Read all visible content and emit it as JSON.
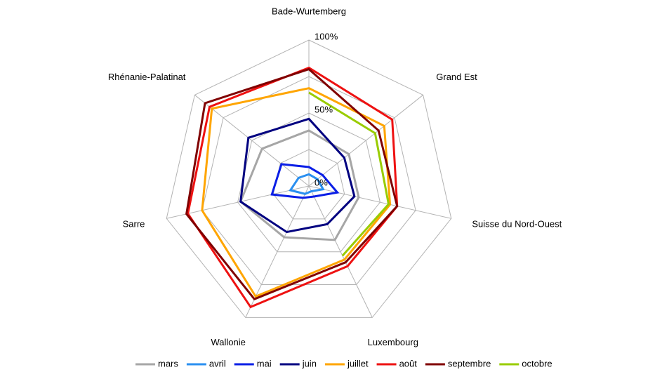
{
  "chart_data": {
    "type": "radar",
    "categories": [
      "Bade-Wurtemberg",
      "Grand Est",
      "Suisse du Nord-Ouest",
      "Luxembourg",
      "Wallonie",
      "Sarre",
      "Rhénanie-Palatinat"
    ],
    "ylim": [
      0,
      100
    ],
    "yticks": [
      {
        "value": 0,
        "label": "0%"
      },
      {
        "value": 50,
        "label": "50%"
      },
      {
        "value": 100,
        "label": "100%"
      }
    ],
    "minor_yticks": [
      25,
      75
    ],
    "grid": true,
    "legend": "bottom",
    "series": [
      {
        "name": "mars",
        "color": "#a6a6a6",
        "values": [
          38,
          35,
          35,
          41,
          39,
          48,
          41
        ]
      },
      {
        "name": "avril",
        "color": "#2a8ff0",
        "values": [
          8,
          7.5,
          10,
          4,
          6,
          13,
          9
        ]
      },
      {
        "name": "mai",
        "color": "#0a1ee6",
        "values": [
          13,
          12,
          20,
          8,
          9,
          26,
          24
        ]
      },
      {
        "name": "juin",
        "color": "#000080",
        "values": [
          46,
          31,
          32,
          29,
          35,
          48,
          53
        ]
      },
      {
        "name": "juillet",
        "color": "#ffa500",
        "values": [
          67,
          66,
          57,
          56,
          84,
          75,
          85
        ]
      },
      {
        "name": "août",
        "color": "#ee1111",
        "values": [
          81,
          73,
          62,
          61,
          92,
          85,
          87
        ]
      },
      {
        "name": "septembre",
        "color": "#800000",
        "values": [
          80,
          61,
          62,
          58,
          86,
          86,
          91
        ]
      },
      {
        "name": "octobre",
        "color": "#99cc00",
        "values": [
          64,
          58,
          56,
          53,
          null,
          null,
          null
        ]
      }
    ]
  }
}
